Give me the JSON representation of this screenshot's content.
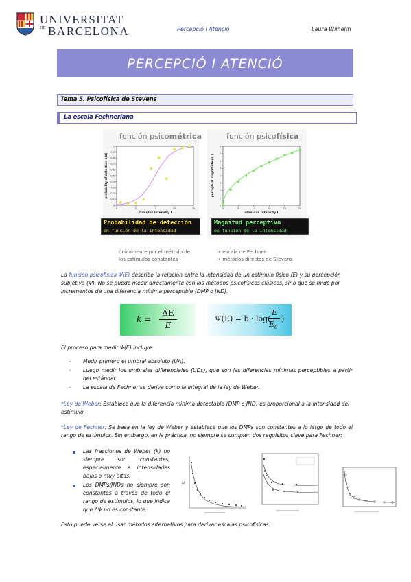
{
  "header": {
    "logo_line1": "UNIVERSITAT",
    "logo_line2": "BARCELONA",
    "logo_de": "DE",
    "course": "Percepció i Atenció",
    "author": "Laura Wilhelm"
  },
  "title": "PERCEPCIÓ I ATENCIÓ",
  "topic": "Tema 5. Psicofísica de Stevens",
  "subsection": "La escala Fechneriana",
  "figure": {
    "left": {
      "title_prefix": "función psico",
      "title_bold": "métrica",
      "ylabel": "probability of detection p(d)",
      "xlabel": "stimulus intensity I",
      "caption_line1": "Probabilidad de detección",
      "caption_line2": "en función de la intensidad",
      "note_line1": "únicamente por el método de",
      "note_line2": "los estímulos constantes",
      "yticks": [
        "0",
        "0.1",
        "0.2",
        "0.3",
        "0.4",
        "0.5",
        "0.6",
        "0.7",
        "0.8",
        "0.9",
        "1"
      ],
      "xticks": [
        "0",
        "5",
        "10",
        "15",
        "20"
      ],
      "points": [
        [
          1,
          0.05
        ],
        [
          3,
          0.02
        ],
        [
          5,
          0.04
        ],
        [
          7,
          0.1
        ],
        [
          9,
          0.62
        ],
        [
          11,
          0.8
        ],
        [
          13,
          0.45
        ],
        [
          15,
          0.95
        ],
        [
          17,
          0.97
        ],
        [
          19,
          1.0
        ]
      ]
    },
    "right": {
      "title_prefix": "función psico",
      "title_bold": "física",
      "ylabel": "perceptual magnitude ψ(I)",
      "xlabel": "stimulus intensity I",
      "caption_line1": "Magnitud perceptiva",
      "caption_line2": "en función de la intensidad",
      "bullet1": "escala de Fechner",
      "bullet2": "métodos directos de Stevens",
      "yticks": [
        "0",
        "1",
        "2",
        "3",
        "4",
        "5",
        "6",
        "7",
        "8"
      ],
      "xticks": [
        "0",
        "5",
        "10",
        "15",
        "20",
        "25"
      ],
      "points": [
        [
          0,
          0
        ],
        [
          2.5,
          2.1
        ],
        [
          5,
          3.2
        ],
        [
          7.5,
          4.0
        ],
        [
          10,
          4.7
        ],
        [
          12.5,
          5.3
        ],
        [
          15,
          5.8
        ],
        [
          17.5,
          6.3
        ],
        [
          20,
          6.8
        ],
        [
          22.5,
          7.1
        ],
        [
          25,
          7.5
        ]
      ]
    }
  },
  "para1": {
    "pre": "La ",
    "link": "función psicofísica Ψ(E)",
    "post": " describe la relación entre la intensidad de un estímulo físico (E) y su percepción subjetiva (Ψ). No se puede medir directamente con los métodos psicofísicos clásicos, sino que se mide por incrementos de una diferencia mínima perceptible (DMP o JND)."
  },
  "formulas": {
    "weber_lhs": "k =",
    "weber_num": "ΔE",
    "weber_den": "E",
    "fechner_lhs": "Ψ(E) = b · log(",
    "fechner_num": "E",
    "fechner_den": "E",
    "fechner_sub": "0",
    "fechner_rhs": ")"
  },
  "process": {
    "intro": "El proceso para medir Ψ(E) incluye:",
    "items": [
      "Medir primero el umbral absoluto (UA).",
      "Luego medir los umbrales diferenciales (UDs), que son las diferencias mínimas perceptibles a partir del estándar.",
      "La escala de Fechner se deriva como la integral de la ley de Weber."
    ]
  },
  "weber": {
    "label": "*Ley de Weber",
    "text": ": Establece que la diferencia mínima detectable (DMP o JND) es proporcional a la intensidad del estímulo."
  },
  "fechner": {
    "label": "*Ley de Fechner",
    "text": ": Se basa en la ley de Weber y establece que los DMPs son constantes a lo largo de todo el rango de estímulos. Sin embargo, en la práctica, no siempre se cumplen dos requisitos clave para Fechner:"
  },
  "requisites": [
    "Las fracciones de Weber (k) no siempre son constantes, especialmente a intensidades bajas o muy altas.",
    "Los DMPs/JNDs no siempre son constantes a través de todo el rango de estímulos, lo que indica que ΔΨ no es constante."
  ],
  "closing": "Esto puede verse al usar métodos alternativos para derivar escalas psicofísicas.",
  "colors": {
    "banner": "#8c8ad3",
    "accent": "#3a57b8",
    "curve_left": "#d98be0",
    "points_yellow": "#d8e84a",
    "curve_right": "#7fe36a"
  }
}
